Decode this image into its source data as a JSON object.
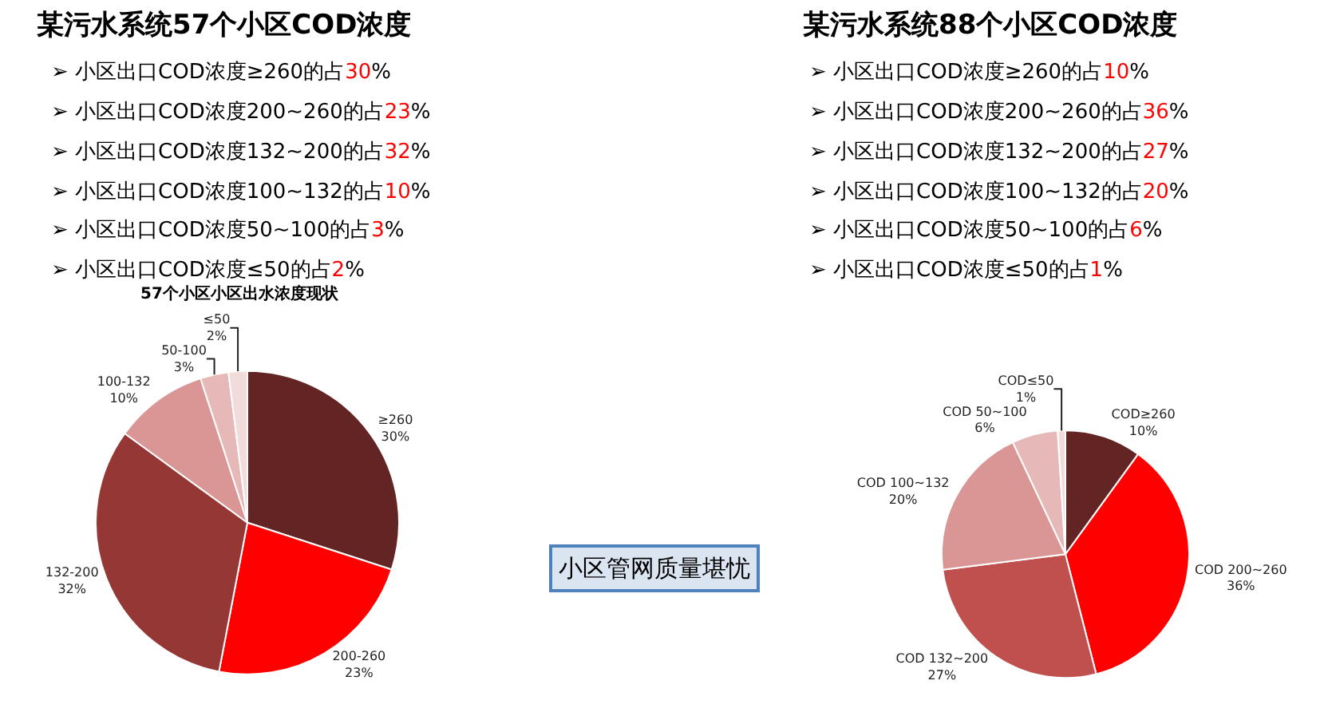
{
  "chart_data": [
    {
      "type": "pie",
      "title": "某污水系统57个小区COD浓度",
      "subtitle": "57个小区小区出水浓度现状",
      "categories": [
        "≥260",
        "200-260",
        "132-200",
        "100-132",
        "50-100",
        "≤50"
      ],
      "values": [
        30,
        23,
        32,
        10,
        3,
        2
      ],
      "value_labels": [
        "30%",
        "23%",
        "32%",
        "10%",
        "3%",
        "2%"
      ],
      "colors": [
        "#632523",
        "#ff0000",
        "#953735",
        "#d99694",
        "#e6b9b8",
        "#f2dcdb"
      ],
      "annotations": [
        "➢ 小区出口COD浓度≥260的占30%",
        "➢ 小区出口COD浓度200~260的占23%",
        "➢ 小区出口COD浓度132~200的占32%",
        "➢ 小区出口COD浓度100~132的占10%",
        "➢ 小区出口COD浓度50~100的占3%",
        "➢ 小区出口COD浓度≤50的占2%"
      ]
    },
    {
      "type": "pie",
      "title": "某污水系统88个小区COD浓度",
      "categories": [
        "COD≥260",
        "COD 200~260",
        "COD 132~200",
        "COD 100~132",
        "COD 50~100",
        "COD≤50"
      ],
      "values": [
        10,
        36,
        27,
        20,
        6,
        1
      ],
      "value_labels": [
        "10%",
        "36%",
        "27%",
        "20%",
        "6%",
        "1%"
      ],
      "colors": [
        "#632523",
        "#ff0000",
        "#c0504d",
        "#d99694",
        "#e6b9b8",
        "#f2dcdb"
      ],
      "annotations": [
        "➢ 小区出口COD浓度≥260的占10%",
        "➢ 小区出口COD浓度200~260的占36%",
        "➢ 小区出口COD浓度132~200的占27%",
        "➢ 小区出口COD浓度100~132的占20%",
        "➢ 小区出口COD浓度50~100的占6%",
        "➢ 小区出口COD浓度≤50的占1%"
      ]
    },
    {
      "type": "other",
      "annotations": [
        "小区管网质量堪忧"
      ]
    }
  ]
}
